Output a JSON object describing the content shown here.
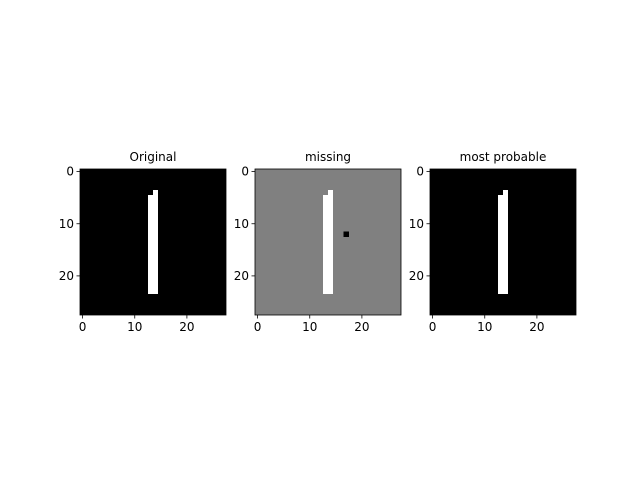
{
  "figure": {
    "background": "#ffffff"
  },
  "chart_data": [
    {
      "type": "heatmap",
      "title": "Original",
      "image_size": [
        28,
        28
      ],
      "colormap": "gray",
      "background_value": 0,
      "xticks": [
        0,
        10,
        20
      ],
      "yticks": [
        0,
        10,
        20
      ],
      "white_pixels": [
        {
          "x0": 13,
          "x1": 14,
          "y0": 5,
          "y1": 23
        },
        {
          "x0": 14,
          "x1": 14,
          "y0": 4,
          "y1": 4
        }
      ],
      "black_pixels": []
    },
    {
      "type": "heatmap",
      "title": "missing",
      "image_size": [
        28,
        28
      ],
      "colormap": "gray",
      "background_value": 0.5,
      "xticks": [
        0,
        10,
        20
      ],
      "yticks": [
        0,
        10,
        20
      ],
      "white_pixels": [
        {
          "x0": 13,
          "x1": 14,
          "y0": 5,
          "y1": 23
        },
        {
          "x0": 14,
          "x1": 14,
          "y0": 4,
          "y1": 4
        }
      ],
      "black_pixels": [
        {
          "x0": 17,
          "x1": 17,
          "y0": 12,
          "y1": 12
        }
      ]
    },
    {
      "type": "heatmap",
      "title": "most probable",
      "image_size": [
        28,
        28
      ],
      "colormap": "gray",
      "background_value": 0,
      "xticks": [
        0,
        10,
        20
      ],
      "yticks": [
        0,
        10,
        20
      ],
      "white_pixels": [
        {
          "x0": 13,
          "x1": 14,
          "y0": 5,
          "y1": 23
        },
        {
          "x0": 14,
          "x1": 14,
          "y0": 4,
          "y1": 4
        }
      ],
      "black_pixels": []
    }
  ]
}
